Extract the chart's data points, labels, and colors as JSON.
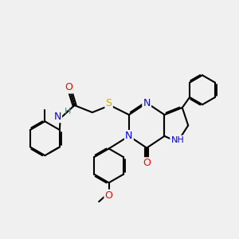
{
  "bg_color": "#f0f0f0",
  "bond_color": "#000000",
  "bond_width": 1.5,
  "atom_colors": {
    "N": "#0000ff",
    "O": "#ff0000",
    "S": "#ccaa00",
    "H_label": "#4a8a8a",
    "C": "#000000"
  },
  "font_size_atom": 9,
  "font_size_small": 7.5
}
